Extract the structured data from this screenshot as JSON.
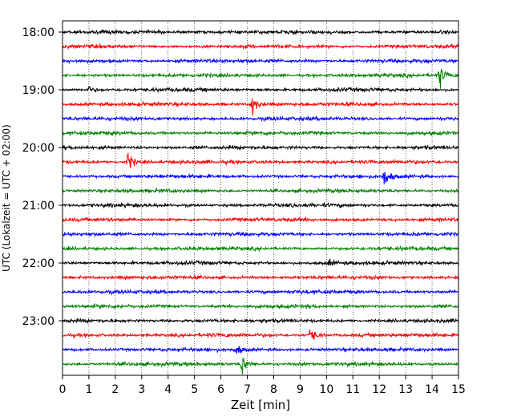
{
  "chart_data": {
    "type": "line",
    "title": "",
    "xlabel": "Zeit  [min]",
    "ylabel": "UTC (Lokalzeit = UTC + 02:00)",
    "xlim": [
      0,
      15
    ],
    "x_ticks": [
      0,
      1,
      2,
      3,
      4,
      5,
      6,
      7,
      8,
      9,
      10,
      11,
      12,
      13,
      14,
      15
    ],
    "y_ticks": [
      "18:00",
      "19:00",
      "20:00",
      "21:00",
      "22:00",
      "23:00"
    ],
    "grid": "vertical-dotted",
    "trace_interval_min": 15,
    "colors": [
      "#000000",
      "#ff0000",
      "#0000ff",
      "#008000"
    ],
    "rows": [
      {
        "start": "18:00",
        "color": "#000000",
        "events": []
      },
      {
        "start": "18:15",
        "color": "#ff0000",
        "events": []
      },
      {
        "start": "18:30",
        "color": "#0000ff",
        "events": []
      },
      {
        "start": "18:45",
        "color": "#008000",
        "events": [
          {
            "t": 14.3,
            "amplitude": "large"
          }
        ]
      },
      {
        "start": "19:00",
        "color": "#000000",
        "events": [
          {
            "t": 1.0,
            "amplitude": "small"
          }
        ]
      },
      {
        "start": "19:15",
        "color": "#ff0000",
        "events": [
          {
            "t": 7.2,
            "amplitude": "large"
          }
        ]
      },
      {
        "start": "19:30",
        "color": "#0000ff",
        "events": []
      },
      {
        "start": "19:45",
        "color": "#008000",
        "events": []
      },
      {
        "start": "20:00",
        "color": "#000000",
        "events": []
      },
      {
        "start": "20:15",
        "color": "#ff0000",
        "events": [
          {
            "t": 2.5,
            "amplitude": "large"
          }
        ]
      },
      {
        "start": "20:30",
        "color": "#0000ff",
        "events": [
          {
            "t": 12.2,
            "amplitude": "large"
          }
        ]
      },
      {
        "start": "20:45",
        "color": "#008000",
        "events": []
      },
      {
        "start": "21:00",
        "color": "#000000",
        "events": []
      },
      {
        "start": "21:15",
        "color": "#ff0000",
        "events": []
      },
      {
        "start": "21:30",
        "color": "#0000ff",
        "events": []
      },
      {
        "start": "21:45",
        "color": "#008000",
        "events": []
      },
      {
        "start": "22:00",
        "color": "#000000",
        "events": [
          {
            "t": 10.1,
            "amplitude": "small"
          }
        ]
      },
      {
        "start": "22:15",
        "color": "#ff0000",
        "events": []
      },
      {
        "start": "22:30",
        "color": "#0000ff",
        "events": []
      },
      {
        "start": "22:45",
        "color": "#008000",
        "events": []
      },
      {
        "start": "23:00",
        "color": "#000000",
        "events": []
      },
      {
        "start": "23:15",
        "color": "#ff0000",
        "events": [
          {
            "t": 9.4,
            "amplitude": "large"
          }
        ]
      },
      {
        "start": "23:30",
        "color": "#0000ff",
        "events": [
          {
            "t": 6.6,
            "amplitude": "medium"
          }
        ]
      },
      {
        "start": "23:45",
        "color": "#008000",
        "events": [
          {
            "t": 6.8,
            "amplitude": "large"
          }
        ]
      }
    ]
  }
}
